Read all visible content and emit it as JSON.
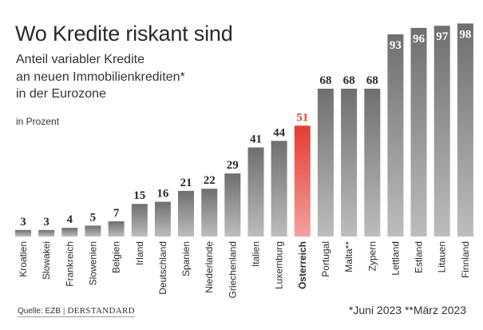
{
  "header": {
    "title": "Wo Kredite riskant sind",
    "subtitle_lines": [
      "Anteil variabler Kredite",
      "an neuen Immobilienkrediten*",
      "in der Eurozone"
    ],
    "unit": "in Prozent"
  },
  "footer": {
    "source_label": "Quelle: EZB",
    "brand": "DERSTANDARD",
    "footnote": "*Juni 2023 **März 2023"
  },
  "colors": {
    "bar": "#7d7d7d",
    "bar_light": "#b9b9b9",
    "highlight": "#e8453c",
    "highlight_label": "#e8453c",
    "label": "#2b2b2b"
  },
  "chart_data": {
    "type": "bar",
    "title": "Wo Kredite riskant sind",
    "ylabel": "in Prozent",
    "ylim": [
      0,
      100
    ],
    "grid": false,
    "highlight": "Österreich",
    "categories": [
      "Kroatien",
      "Slowakei",
      "Frankreich",
      "Slowenien",
      "Belgien",
      "Irland",
      "Deutschland",
      "Spanien",
      "Niederlande",
      "Griechenland",
      "Italien",
      "Luxemburg",
      "Österreich",
      "Portugal",
      "Malta**",
      "Zypern",
      "Lettland",
      "Estland",
      "Litauen",
      "Finnland"
    ],
    "values": [
      3,
      3,
      4,
      5,
      7,
      15,
      16,
      21,
      22,
      29,
      41,
      44,
      51,
      68,
      68,
      68,
      93,
      96,
      97,
      98
    ]
  }
}
